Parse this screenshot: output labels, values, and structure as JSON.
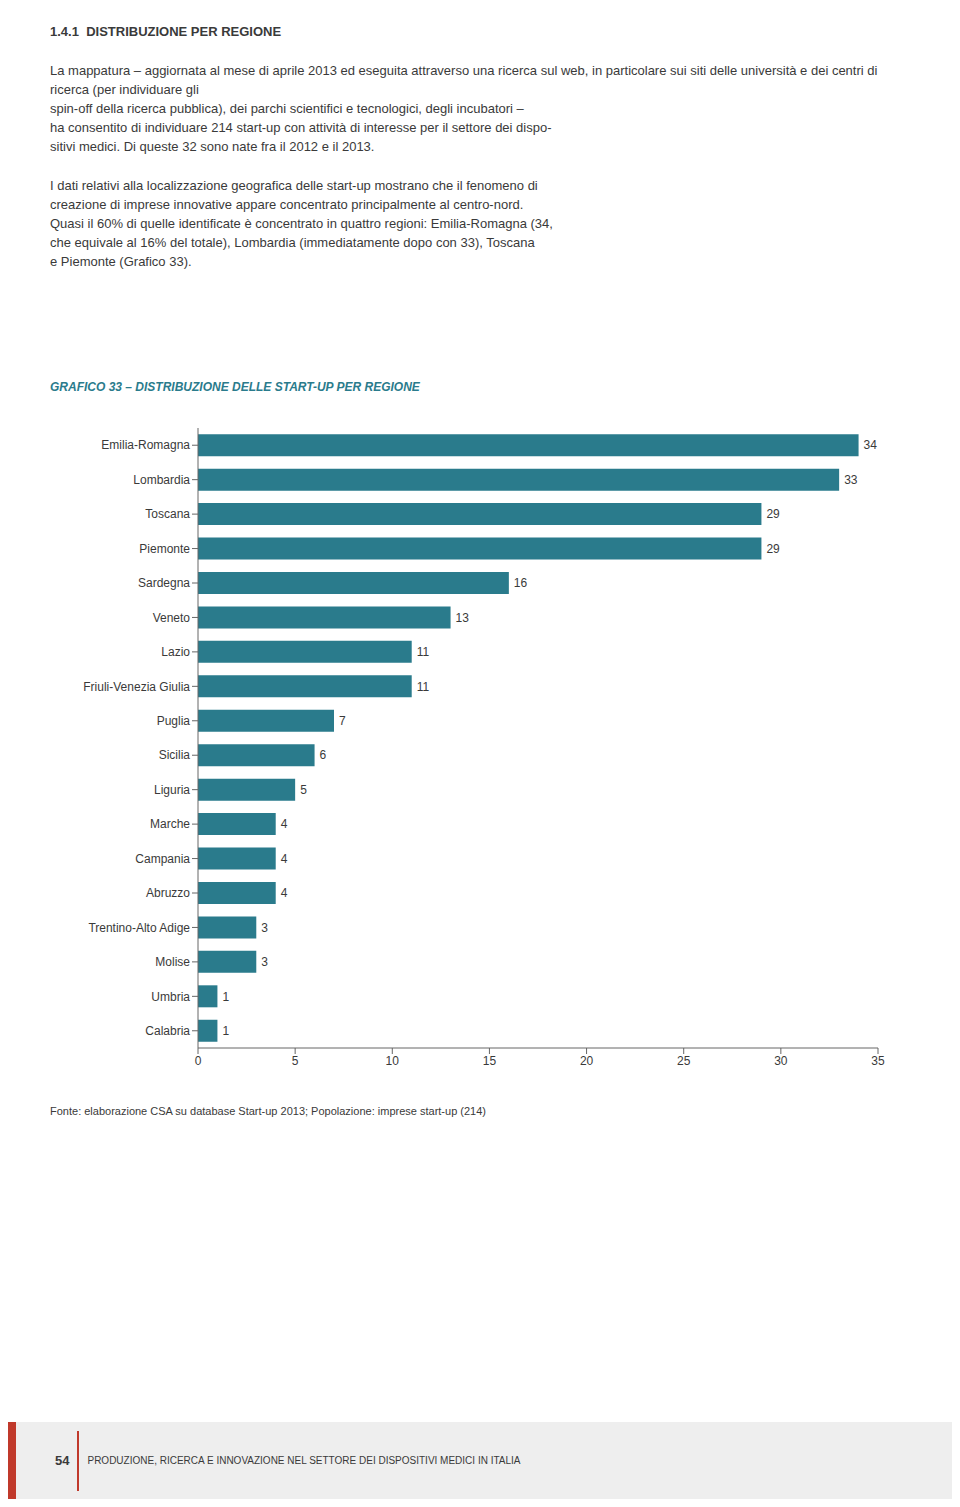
{
  "chart_data": {
    "type": "bar",
    "orientation": "horizontal",
    "title": "GRAFICO 33 – DISTRIBUZIONE DELLE START-UP PER REGIONE",
    "annotations": [
      "1.4.1  DISTRIBUZIONE PER REGIONE",
      "La mappatura – aggiornata al mese di aprile 2013 ed eseguita attraverso una ricerca sul web, in particolare sui siti delle università e dei centri di ricerca (per individuare gli",
      "spin-off della ricerca pubblica), dei parchi scientifici e tecnologici, degli incubatori –",
      "ha consentito di individuare 214 start-up con attività di interesse per il settore dei dispo-",
      "sitivi medici. Di queste 32 sono nate fra il 2012 e il 2013.",
      "I dati relativi alla localizzazione geografica delle start-up mostrano che il fenomeno di",
      "creazione di imprese innovative appare concentrato principalmente al centro-nord.",
      "Quasi il 60% di quelle identificate è concentrato in quattro regioni: Emilia-Romagna (34,",
      "che equivale al 16% del totale), Lombardia (immediatamente dopo con 33), Toscana",
      "e Piemonte (Grafico 33).",
      "Fonte: elaborazione CSA su database Start-up 2013; Popolazione: imprese start-up (214)",
      "54",
      "PRODUZIONE, RICERCA E INNOVAZIONE NEL SETTORE DEI DISPOSITIVI MEDICI IN ITALIA"
    ],
    "categories": [
      "Emilia-Romagna",
      "Lombardia",
      "Toscana",
      "Piemonte",
      "Sardegna",
      "Veneto",
      "Lazio",
      "Friuli-Venezia Giulia",
      "Puglia",
      "Sicilia",
      "Liguria",
      "Marche",
      "Campania",
      "Abruzzo",
      "Trentino-Alto Adige",
      "Molise",
      "Umbria",
      "Calabria"
    ],
    "values": [
      34,
      33,
      29,
      29,
      16,
      13,
      11,
      11,
      7,
      6,
      5,
      4,
      4,
      4,
      3,
      3,
      1,
      1
    ],
    "color": "#2a7b8c",
    "xlim": [
      0,
      35
    ],
    "xticks": [
      0,
      5,
      10,
      15,
      20,
      25,
      30,
      35
    ],
    "grid": false,
    "data_labels": true
  }
}
